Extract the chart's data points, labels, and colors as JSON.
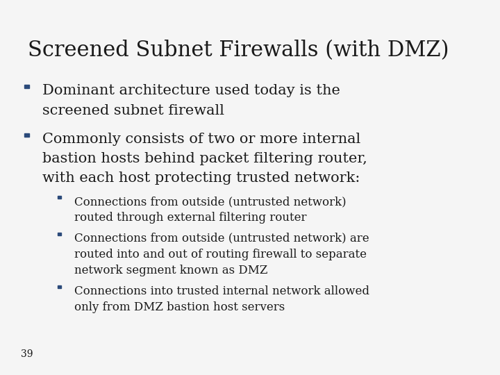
{
  "title": "Screened Subnet Firewalls (with DMZ)",
  "background_color": "#f5f5f5",
  "title_color": "#1a1a1a",
  "text_color": "#1a1a1a",
  "bullet_color": "#2b4a7a",
  "title_fontsize": 22,
  "body_fontsize": 15,
  "sub_fontsize": 12,
  "page_number": "39",
  "bullets": [
    {
      "level": 1,
      "lines": [
        "Dominant architecture used today is the",
        "screened subnet firewall"
      ]
    },
    {
      "level": 1,
      "lines": [
        "Commonly consists of two or more internal",
        "bastion hosts behind packet filtering router,",
        "with each host protecting trusted network:"
      ]
    },
    {
      "level": 2,
      "lines": [
        "Connections from outside (untrusted network)",
        "routed through external filtering router"
      ]
    },
    {
      "level": 2,
      "lines": [
        "Connections from outside (untrusted network) are",
        "routed into and out of routing firewall to separate",
        "network segment known as DMZ"
      ]
    },
    {
      "level": 2,
      "lines": [
        "Connections into trusted internal network allowed",
        "only from DMZ bastion host servers"
      ]
    }
  ]
}
